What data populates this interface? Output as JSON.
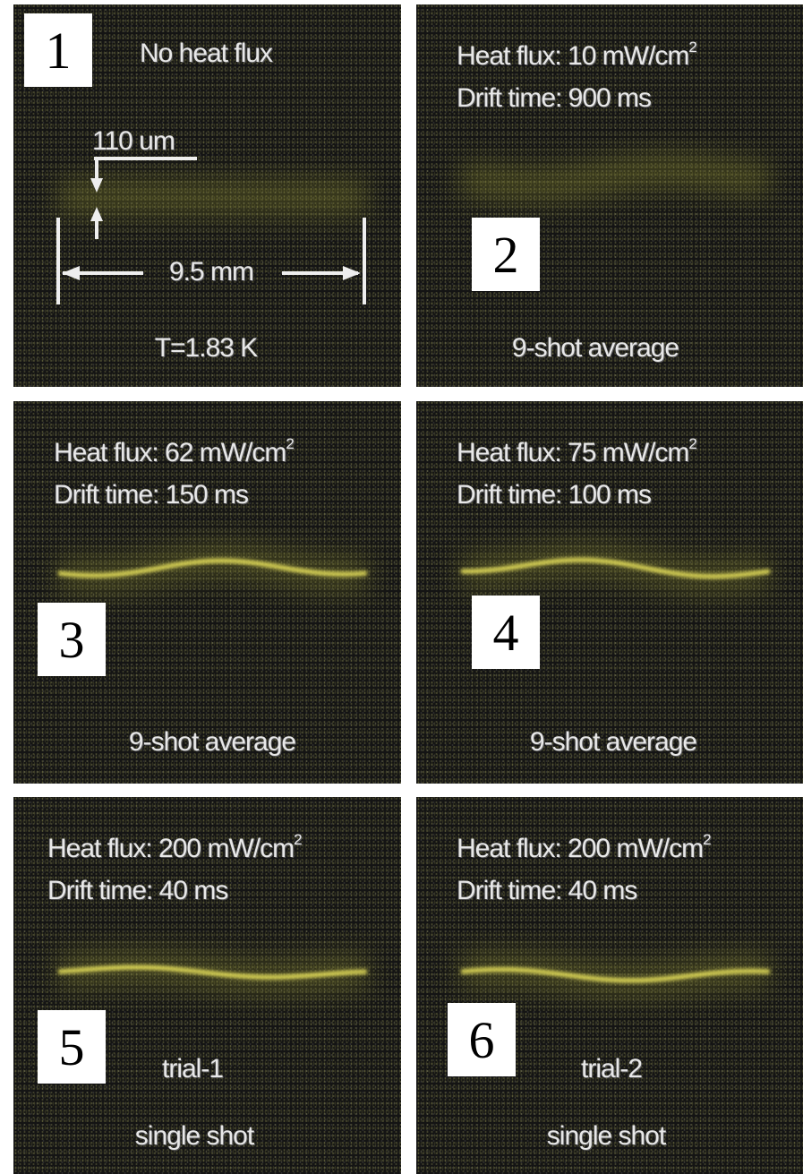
{
  "panels": [
    {
      "number": "1",
      "top": [
        {
          "text": "No heat flux"
        }
      ],
      "bottom": [
        "T=1.83 K"
      ],
      "scale_thickness": "110 um",
      "scale_width": "9.5 mm"
    },
    {
      "number": "2",
      "top": [
        {
          "text": "Heat flux: 10 mW/cm",
          "sup": "2"
        },
        {
          "text": "Drift time: 900 ms"
        }
      ],
      "bottom": [
        "9-shot average"
      ]
    },
    {
      "number": "3",
      "top": [
        {
          "text": "Heat flux: 62 mW/cm",
          "sup": "2"
        },
        {
          "text": "Drift time: 150 ms"
        }
      ],
      "bottom": [
        "9-shot average"
      ]
    },
    {
      "number": "4",
      "top": [
        {
          "text": "Heat flux: 75 mW/cm",
          "sup": "2"
        },
        {
          "text": "Drift time: 100 ms"
        }
      ],
      "bottom": [
        "9-shot average"
      ]
    },
    {
      "number": "5",
      "top": [
        {
          "text": "Heat flux: 200 mW/cm",
          "sup": "2"
        },
        {
          "text": "Drift time: 40 ms"
        }
      ],
      "bottom": [
        "trial-1",
        "single shot"
      ]
    },
    {
      "number": "6",
      "top": [
        {
          "text": "Heat flux: 200 mW/cm",
          "sup": "2"
        },
        {
          "text": "Drift time: 40 ms"
        }
      ],
      "bottom": [
        "trial-2",
        "single shot"
      ]
    }
  ]
}
